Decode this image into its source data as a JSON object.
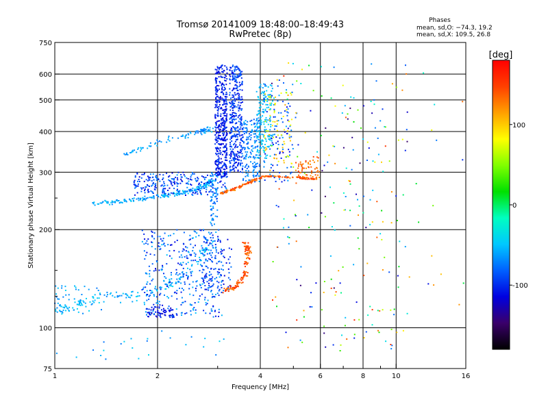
{
  "chart_data": {
    "type": "scatter",
    "title": "Tromsø 20141009 18:48:00–18:49:43",
    "subtitle": "RwPretec (8p)",
    "xlabel": "Frequency [MHz]",
    "ylabel": "Stationary phase Virtual Height [km]",
    "x_scale": "log",
    "y_scale": "log",
    "xlim": [
      1,
      16
    ],
    "ylim": [
      75,
      750
    ],
    "x_ticks": [
      1,
      2,
      4,
      6,
      8,
      10,
      16
    ],
    "x_tick_labels": [
      "1",
      "2",
      "4",
      "6",
      "8",
      "10",
      "16"
    ],
    "x_minor_ticks": [
      3,
      5,
      7,
      9
    ],
    "y_ticks": [
      75,
      100,
      200,
      300,
      400,
      500,
      600,
      750
    ],
    "y_tick_labels": [
      "75",
      "100",
      "200",
      "300",
      "400",
      "500",
      "600",
      "750"
    ],
    "y_minor_ticks": [
      125,
      150,
      250
    ],
    "grid": true,
    "color_variable": "phase",
    "colorbar": {
      "unit": "[deg]",
      "range": [
        -180,
        180
      ],
      "ticks": [
        100,
        0,
        -100
      ],
      "tick_labels": [
        "100",
        "0",
        "-100"
      ],
      "colormap": [
        "#000000",
        "#3a006a",
        "#0000e0",
        "#0060ff",
        "#00c8ff",
        "#00ffc0",
        "#00e000",
        "#80ff00",
        "#ffff00",
        "#ffa000",
        "#ff4000",
        "#ff0000"
      ]
    },
    "stats": {
      "heading": "Phases",
      "line_o": "mean, sd,O: −74.3, 19.2",
      "line_x": "mean, sd,X: 109.5, 26.8"
    },
    "clusters": [
      {
        "shape": "curve",
        "path": [
          [
            1.0,
            125
          ],
          [
            1.05,
            112
          ],
          [
            1.2,
            120
          ],
          [
            1.45,
            125
          ],
          [
            1.7,
            125
          ],
          [
            2.0,
            130
          ],
          [
            2.3,
            140
          ],
          [
            2.6,
            160
          ],
          [
            2.85,
            180
          ]
        ],
        "n": 170,
        "spread": [
          0.05,
          0.05
        ],
        "phase": [
          -70,
          -40
        ]
      },
      {
        "shape": "box",
        "x": [
          1.0,
          1.4
        ],
        "y": [
          110,
          135
        ],
        "n": 40,
        "phase": [
          -75,
          -40
        ]
      },
      {
        "shape": "box",
        "x": [
          1.8,
          3.1
        ],
        "y": [
          108,
          200
        ],
        "n": 380,
        "phase": [
          -115,
          -50
        ]
      },
      {
        "shape": "box",
        "x": [
          1.85,
          2.25
        ],
        "y": [
          107,
          116
        ],
        "n": 60,
        "phase": [
          -125,
          -95
        ]
      },
      {
        "shape": "box",
        "x": [
          2.7,
          3.3
        ],
        "y": [
          130,
          190
        ],
        "n": 110,
        "phase": [
          -120,
          -70
        ]
      },
      {
        "shape": "curve",
        "path": [
          [
            3.15,
            130
          ],
          [
            3.4,
            134
          ],
          [
            3.6,
            145
          ],
          [
            3.7,
            170
          ],
          [
            3.6,
            183
          ]
        ],
        "n": 130,
        "spread": [
          0.03,
          0.03
        ],
        "phase": [
          125,
          160
        ]
      },
      {
        "shape": "curve",
        "path": [
          [
            1.3,
            240
          ],
          [
            1.6,
            245
          ],
          [
            2.0,
            252
          ],
          [
            2.4,
            260
          ],
          [
            2.75,
            272
          ],
          [
            2.9,
            285
          ]
        ],
        "n": 220,
        "spread": [
          0.025,
          0.02
        ],
        "phase": [
          -75,
          -40
        ]
      },
      {
        "shape": "box",
        "x": [
          1.7,
          3.2
        ],
        "y": [
          255,
          300
        ],
        "n": 260,
        "phase": [
          -120,
          -60
        ]
      },
      {
        "shape": "box",
        "x": [
          2.85,
          3.0
        ],
        "y": [
          205,
          300
        ],
        "n": 60,
        "phase": [
          -90,
          -50
        ]
      },
      {
        "shape": "curve",
        "path": [
          [
            1.6,
            340
          ],
          [
            1.9,
            365
          ],
          [
            2.3,
            385
          ],
          [
            2.7,
            400
          ],
          [
            2.95,
            410
          ]
        ],
        "n": 90,
        "spread": [
          0.03,
          0.03
        ],
        "phase": [
          -80,
          -50
        ]
      },
      {
        "shape": "box",
        "x": [
          2.95,
          3.2
        ],
        "y": [
          290,
          640
        ],
        "n": 420,
        "phase": [
          -120,
          -90
        ]
      },
      {
        "shape": "box",
        "x": [
          3.25,
          3.55
        ],
        "y": [
          300,
          640
        ],
        "n": 380,
        "phase": [
          -115,
          -75
        ]
      },
      {
        "shape": "box",
        "x": [
          3.55,
          4.0
        ],
        "y": [
          280,
          440
        ],
        "n": 180,
        "phase": [
          -90,
          -55
        ]
      },
      {
        "shape": "box",
        "x": [
          3.9,
          4.35
        ],
        "y": [
          330,
          560
        ],
        "n": 170,
        "phase": [
          -65,
          -40
        ]
      },
      {
        "shape": "box",
        "x": [
          4.1,
          5.0
        ],
        "y": [
          280,
          600
        ],
        "n": 90,
        "phase": [
          -120,
          -60
        ]
      },
      {
        "shape": "curve",
        "path": [
          [
            3.05,
            258
          ],
          [
            3.4,
            268
          ],
          [
            3.8,
            282
          ],
          [
            4.1,
            292
          ],
          [
            4.6,
            290
          ],
          [
            5.3,
            288
          ],
          [
            5.8,
            286
          ]
        ],
        "n": 170,
        "spread": [
          0.02,
          0.01
        ],
        "phase": [
          120,
          160
        ]
      },
      {
        "shape": "box",
        "x": [
          4.1,
          5.0
        ],
        "y": [
          300,
          530
        ],
        "n": 70,
        "phase": [
          60,
          115
        ]
      },
      {
        "shape": "box",
        "x": [
          5.0,
          6.0
        ],
        "y": [
          288,
          335
        ],
        "n": 60,
        "phase": [
          115,
          155
        ]
      },
      {
        "shape": "box",
        "x": [
          4.3,
          10.8
        ],
        "y": [
          85,
          650
        ],
        "n": 230,
        "phase": [
          -150,
          160
        ]
      },
      {
        "shape": "box",
        "x": [
          10.0,
          16.0
        ],
        "y": [
          85,
          650
        ],
        "n": 20,
        "phase": [
          -120,
          140
        ]
      },
      {
        "shape": "box",
        "x": [
          1.0,
          3.2
        ],
        "y": [
          78,
          98
        ],
        "n": 24,
        "phase": [
          -80,
          -40
        ]
      }
    ]
  }
}
